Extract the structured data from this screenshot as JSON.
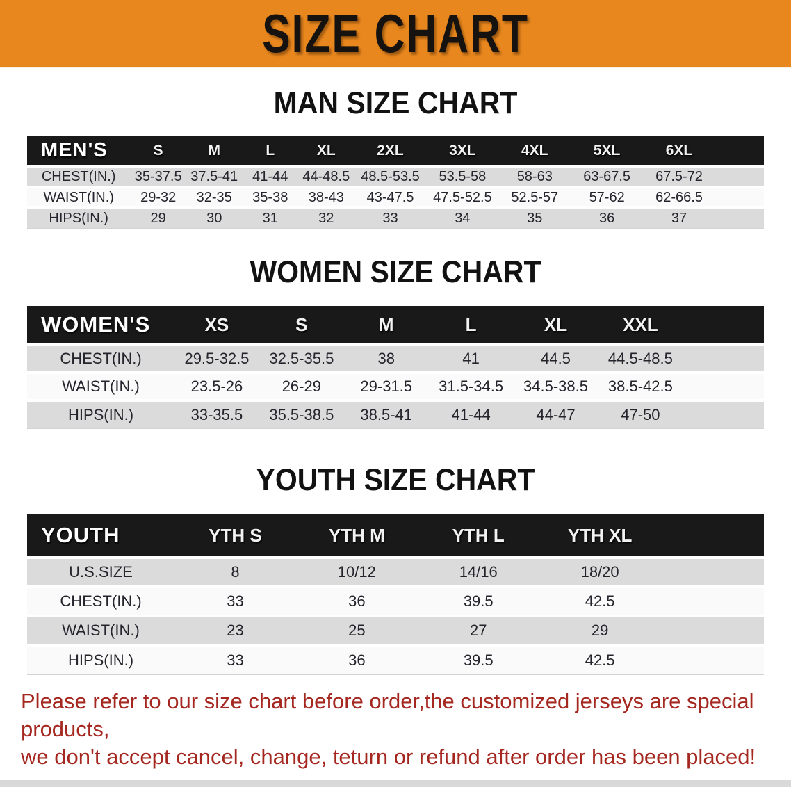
{
  "banner": {
    "title": "SIZE CHART"
  },
  "colors": {
    "banner_bg": "#E8871E",
    "banner_text": "#151210",
    "header_bar": "#191919",
    "row_gray": "#DBDBDB",
    "row_white": "#FAFAFA",
    "disclaimer_red": "#A52820"
  },
  "sections": [
    {
      "heading": "MAN SIZE CHART",
      "table": {
        "corner_label": "MEN'S",
        "columns": [
          "S",
          "M",
          "L",
          "XL",
          "2XL",
          "3XL",
          "4XL",
          "5XL",
          "6XL"
        ],
        "rows": [
          {
            "label": "CHEST(IN.)",
            "values": [
              "35-37.5",
              "37.5-41",
              "41-44",
              "44-48.5",
              "48.5-53.5",
              "53.5-58",
              "58-63",
              "63-67.5",
              "67.5-72"
            ]
          },
          {
            "label": "WAIST(IN.)",
            "values": [
              "29-32",
              "32-35",
              "35-38",
              "38-43",
              "43-47.5",
              "47.5-52.5",
              "52.5-57",
              "57-62",
              "62-66.5"
            ]
          },
          {
            "label": "HIPS(IN.)",
            "values": [
              "29",
              "30",
              "31",
              "32",
              "33",
              "34",
              "35",
              "36",
              "37"
            ]
          }
        ]
      }
    },
    {
      "heading": "WOMEN SIZE CHART",
      "table": {
        "corner_label": "WOMEN'S",
        "columns": [
          "XS",
          "S",
          "M",
          "L",
          "XL",
          "XXL"
        ],
        "rows": [
          {
            "label": "CHEST(IN.)",
            "values": [
              "29.5-32.5",
              "32.5-35.5",
              "38",
              "41",
              "44.5",
              "44.5-48.5"
            ]
          },
          {
            "label": "WAIST(IN.)",
            "values": [
              "23.5-26",
              "26-29",
              "29-31.5",
              "31.5-34.5",
              "34.5-38.5",
              "38.5-42.5"
            ]
          },
          {
            "label": "HIPS(IN.)",
            "values": [
              "33-35.5",
              "35.5-38.5",
              "38.5-41",
              "41-44",
              "44-47",
              "47-50"
            ]
          }
        ]
      }
    },
    {
      "heading": "YOUTH SIZE CHART",
      "table": {
        "corner_label": "YOUTH",
        "columns": [
          "YTH S",
          "YTH M",
          "YTH L",
          "YTH XL"
        ],
        "rows": [
          {
            "label": "U.S.SIZE",
            "values": [
              "8",
              "10/12",
              "14/16",
              "18/20"
            ]
          },
          {
            "label": "CHEST(IN.)",
            "values": [
              "33",
              "36",
              "39.5",
              "42.5"
            ]
          },
          {
            "label": "WAIST(IN.)",
            "values": [
              "23",
              "25",
              "27",
              "29"
            ]
          },
          {
            "label": "HIPS(IN.)",
            "values": [
              "33",
              "36",
              "39.5",
              "42.5"
            ]
          }
        ]
      }
    }
  ],
  "disclaimer": {
    "lines": [
      "Please refer to our size chart before order,the customized jerseys are special products,",
      "we don't accept cancel, change, teturn or refund after order has been placed!"
    ]
  }
}
